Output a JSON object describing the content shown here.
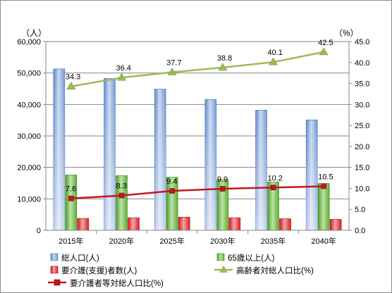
{
  "chart_data": {
    "type": "bar",
    "categories": [
      "2015年",
      "2020年",
      "2025年",
      "2030年",
      "2035年",
      "2040年"
    ],
    "left_axis": {
      "unit": "（人）",
      "range": [
        0,
        60000
      ],
      "ticks": [
        "0",
        "10,000",
        "20,000",
        "30,000",
        "40,000",
        "50,000",
        "60,000"
      ]
    },
    "right_axis": {
      "unit": "（%）",
      "range": [
        0,
        45
      ],
      "ticks": [
        "0.0",
        "5.0",
        "10.0",
        "15.0",
        "20.0",
        "25.0",
        "30.0",
        "35.0",
        "40.0",
        "45.0"
      ]
    },
    "grid": true,
    "legend_position": "bottom",
    "series": [
      {
        "name": "総人口(人)",
        "kind": "bar",
        "axis": "left",
        "color": "#7ea3d9",
        "values": [
          51300,
          48300,
          44900,
          41600,
          38200,
          35100
        ]
      },
      {
        "name": "65歳以上(人)",
        "kind": "bar",
        "axis": "left",
        "color": "#58b02d",
        "values": [
          17600,
          17400,
          16900,
          16100,
          15400,
          14900
        ]
      },
      {
        "name": "要介護(支援)者数(人)",
        "kind": "bar",
        "axis": "left",
        "color": "#e0201b",
        "values": [
          3800,
          4000,
          4200,
          4000,
          3700,
          3500
        ]
      },
      {
        "name": "高齢者対総人口比(%)",
        "kind": "line",
        "axis": "right",
        "color": "#9bbb59",
        "marker": "triangle",
        "values": [
          34.3,
          36.4,
          37.7,
          38.8,
          40.1,
          42.5
        ],
        "labels": [
          "34.3",
          "36.4",
          "37.7",
          "38.8",
          "40.1",
          "42.5"
        ]
      },
      {
        "name": "要介護者等対総人口比(%)",
        "kind": "line",
        "axis": "right",
        "color": "#c0181f",
        "marker": "square",
        "values": [
          7.6,
          8.3,
          9.4,
          9.9,
          10.2,
          10.5
        ],
        "labels": [
          "7.6",
          "8.3",
          "9.4",
          "9.9",
          "10.2",
          "10.5"
        ]
      }
    ]
  }
}
